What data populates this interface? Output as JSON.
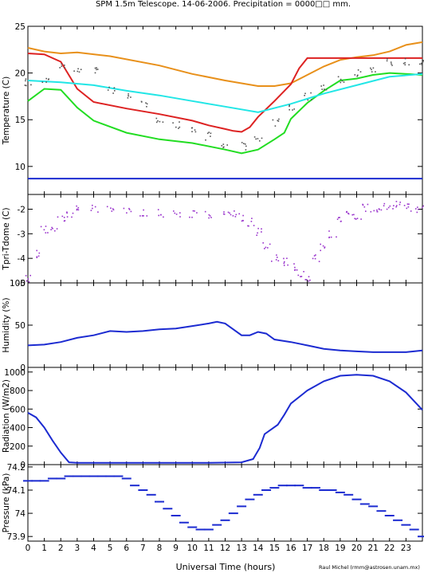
{
  "title": "SPM 1.5m Telescope. 14-06-2006. Precipitation = 0000□□ mm.",
  "credit": "Raul Michel (rmm@astrosen.unam.mx)",
  "chart_data": [
    {
      "type": "line",
      "name": "temperature",
      "ylabel": "Temperature (C)",
      "xlabel": "",
      "ylim": [
        7,
        25
      ],
      "yticks": [
        10,
        15,
        20,
        25
      ],
      "xlim": [
        0,
        24
      ],
      "series": [
        {
          "color": "#e8901a",
          "x": [
            0,
            1,
            2,
            3,
            5,
            8,
            10,
            12,
            13,
            14,
            15,
            16,
            17,
            18,
            19,
            20,
            21,
            22,
            23,
            24
          ],
          "y": [
            22.7,
            22.3,
            22.1,
            22.2,
            21.8,
            20.8,
            19.9,
            19.2,
            18.9,
            18.6,
            18.6,
            18.9,
            19.8,
            20.7,
            21.4,
            21.7,
            21.9,
            22.3,
            23.0,
            23.3
          ]
        },
        {
          "color": "#dd2222",
          "x": [
            0,
            1,
            2,
            3,
            4,
            6,
            8,
            10,
            11,
            12,
            12.5,
            13,
            13.5,
            14,
            15,
            16,
            16.5,
            17,
            17.5,
            18,
            20,
            22,
            24
          ],
          "y": [
            22.1,
            22.0,
            21.2,
            18.3,
            16.9,
            16.2,
            15.6,
            14.9,
            14.4,
            14.0,
            13.8,
            13.7,
            14.2,
            15.3,
            17.0,
            18.8,
            20.5,
            21.6,
            21.6,
            21.6,
            21.6,
            21.6,
            21.6
          ]
        },
        {
          "color": "#22dd22",
          "x": [
            0,
            1,
            2,
            3,
            4,
            6,
            8,
            10,
            12,
            13,
            14,
            15,
            15.6,
            16,
            17,
            18,
            19,
            20,
            21,
            22,
            23,
            24
          ],
          "y": [
            17.0,
            18.3,
            18.2,
            16.3,
            14.9,
            13.6,
            12.9,
            12.5,
            11.8,
            11.4,
            11.8,
            12.9,
            13.6,
            15.1,
            16.8,
            18.1,
            19.2,
            19.4,
            19.8,
            20.0,
            19.9,
            19.8
          ]
        },
        {
          "color": "#22e6e6",
          "x": [
            0,
            2,
            4,
            6,
            8,
            10,
            12,
            14,
            16,
            18,
            20,
            22,
            24
          ],
          "y": [
            19.2,
            19.0,
            18.7,
            18.1,
            17.6,
            17.0,
            16.4,
            15.8,
            16.7,
            17.8,
            18.7,
            19.6,
            19.9
          ]
        },
        {
          "color": "#555555",
          "dots": true,
          "x": [
            0,
            1,
            2,
            3,
            4,
            5,
            6,
            7,
            8,
            9,
            10,
            11,
            12,
            13,
            14,
            15,
            16,
            17,
            18,
            19,
            20,
            21,
            22,
            23,
            24
          ],
          "y": [
            19.0,
            19.5,
            20.9,
            20.5,
            20.2,
            18.3,
            17.8,
            16.8,
            15.2,
            14.5,
            14.0,
            13.3,
            12.5,
            12.2,
            13.0,
            14.8,
            16.5,
            17.6,
            18.4,
            19.3,
            20.1,
            20.6,
            21.2,
            21.3,
            21.1
          ]
        },
        {
          "color": "#1c2bd1",
          "x": [
            0,
            24
          ],
          "y": [
            8.7,
            8.7
          ]
        }
      ]
    },
    {
      "type": "scatter",
      "name": "tpri",
      "ylabel": "Tpri-Tdome (C)",
      "ylim": [
        -5,
        -1.4
      ],
      "yticks": [
        -5,
        -4,
        -3,
        -2
      ],
      "xlim": [
        0,
        24
      ],
      "series": [
        {
          "color": "#9933cc",
          "x": [
            0,
            0.5,
            1,
            1.5,
            2,
            2.5,
            3,
            4,
            5,
            6,
            7,
            8,
            9,
            10,
            11,
            12,
            12.5,
            13,
            13.5,
            14,
            14.5,
            15,
            15.5,
            16,
            16.5,
            17,
            17.5,
            18,
            18.5,
            19,
            19.5,
            20,
            20.5,
            21,
            21.5,
            22,
            22.5,
            23,
            23.5,
            24
          ],
          "y": [
            -4.8,
            -3.8,
            -2.8,
            -2.7,
            -2.4,
            -2.2,
            -2.0,
            -1.95,
            -2.0,
            -2.1,
            -2.15,
            -2.15,
            -2.2,
            -2.15,
            -2.2,
            -2.25,
            -2.2,
            -2.3,
            -2.5,
            -2.9,
            -3.5,
            -4.0,
            -4.1,
            -4.3,
            -4.6,
            -4.8,
            -4.0,
            -3.5,
            -3.0,
            -2.4,
            -2.1,
            -2.3,
            -1.9,
            -2.0,
            -1.9,
            -1.85,
            -1.75,
            -1.9,
            -1.95,
            -2.0
          ]
        }
      ]
    },
    {
      "type": "line",
      "name": "humidity",
      "ylabel": "Humidity (%)",
      "ylim": [
        0,
        100
      ],
      "yticks": [
        0,
        50,
        100
      ],
      "xlim": [
        0,
        24
      ],
      "series": [
        {
          "color": "#1c2bd1",
          "x": [
            0,
            1,
            2,
            3,
            4,
            5,
            6,
            7,
            8,
            9,
            10,
            11,
            11.5,
            12,
            12.5,
            13,
            13.5,
            14,
            14.5,
            15,
            16,
            17,
            18,
            19,
            20,
            21,
            22,
            23,
            24
          ],
          "y": [
            26,
            27,
            30,
            35,
            38,
            43,
            42,
            43,
            45,
            46,
            49,
            52,
            54,
            52,
            45,
            38,
            38,
            42,
            40,
            33,
            30,
            26,
            22,
            20,
            19,
            18,
            18,
            18,
            20
          ]
        }
      ]
    },
    {
      "type": "line",
      "name": "radiation",
      "ylabel": "Radiation (W/m2)",
      "ylim": [
        0,
        1050
      ],
      "yticks": [
        0,
        200,
        400,
        600,
        800,
        1000
      ],
      "xlim": [
        0,
        24
      ],
      "series": [
        {
          "color": "#1c2bd1",
          "x": [
            0,
            0.5,
            1,
            1.5,
            2,
            2.5,
            3,
            5,
            7,
            9,
            11,
            13,
            13.7,
            14.1,
            14.4,
            14.8,
            15.2,
            15.6,
            16,
            17,
            18,
            19,
            20,
            21,
            22,
            23,
            24
          ],
          "y": [
            560,
            510,
            400,
            260,
            130,
            25,
            20,
            20,
            20,
            20,
            20,
            25,
            60,
            180,
            330,
            380,
            430,
            540,
            660,
            800,
            900,
            960,
            970,
            960,
            900,
            780,
            590
          ]
        }
      ]
    },
    {
      "type": "scatter",
      "name": "pressure",
      "ylabel": "Pressure (kPa)",
      "ylim": [
        73.88,
        74.21
      ],
      "yticks": [
        73.9,
        74,
        74.1,
        74.2
      ],
      "xlim": [
        0,
        24
      ],
      "xticks": [
        0,
        1,
        2,
        3,
        4,
        5,
        6,
        7,
        8,
        9,
        10,
        11,
        12,
        13,
        14,
        15,
        16,
        17,
        18,
        19,
        20,
        21,
        22,
        23
      ],
      "xlabel": "Universal Time (hours)",
      "series": [
        {
          "color": "#1c2bd1",
          "x": [
            0,
            0.5,
            1,
            1.5,
            2,
            2.5,
            3,
            3.5,
            4,
            4.5,
            5,
            5.5,
            6,
            6.5,
            7,
            7.5,
            8,
            8.5,
            9,
            9.5,
            10,
            10.5,
            11,
            11.5,
            12,
            12.5,
            13,
            13.5,
            14,
            14.5,
            15,
            15.5,
            16,
            16.5,
            17,
            17.5,
            18,
            18.5,
            19,
            19.5,
            20,
            20.5,
            21,
            21.5,
            22,
            22.5,
            23,
            23.5,
            24
          ],
          "y": [
            74.14,
            74.14,
            74.14,
            74.15,
            74.15,
            74.16,
            74.16,
            74.16,
            74.16,
            74.16,
            74.16,
            74.16,
            74.15,
            74.12,
            74.1,
            74.08,
            74.05,
            74.02,
            73.99,
            73.96,
            73.94,
            73.93,
            73.93,
            73.95,
            73.97,
            74.0,
            74.03,
            74.06,
            74.08,
            74.1,
            74.11,
            74.12,
            74.12,
            74.12,
            74.11,
            74.11,
            74.1,
            74.1,
            74.09,
            74.08,
            74.06,
            74.04,
            74.03,
            74.01,
            73.99,
            73.97,
            73.95,
            73.93,
            73.9
          ]
        }
      ]
    }
  ]
}
